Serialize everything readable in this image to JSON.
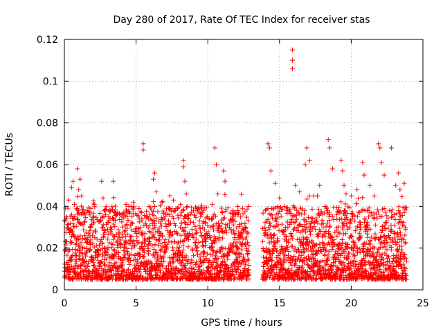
{
  "chart_data": {
    "type": "scatter",
    "title": "Day 280 of 2017, Rate Of TEC Index for receiver stas",
    "xlabel": "GPS time / hours",
    "ylabel": "ROTI / TECUs",
    "xlim": [
      0,
      25
    ],
    "ylim": [
      0,
      0.12
    ],
    "xticks": [
      0,
      5,
      10,
      15,
      20,
      25
    ],
    "xtick_labels": [
      "0",
      "5",
      "10",
      "15",
      "20",
      "25"
    ],
    "yticks": [
      0,
      0.02,
      0.04,
      0.06,
      0.08,
      0.1,
      0.12
    ],
    "ytick_labels": [
      "0",
      "0.02",
      "0.04",
      "0.06",
      "0.08",
      "0.1",
      "0.12"
    ],
    "grid": true,
    "marker": "plus",
    "marker_color": "#ff0000",
    "data_gap_hours": [
      12.9,
      13.8
    ],
    "series": [
      {
        "points": [
          [
            0.3,
            0.043
          ],
          [
            0.4,
            0.035
          ],
          [
            0.5,
            0.049
          ],
          [
            0.6,
            0.052
          ],
          [
            0.7,
            0.041
          ],
          [
            0.9,
            0.058
          ],
          [
            1.0,
            0.048
          ],
          [
            1.1,
            0.053
          ],
          [
            1.2,
            0.045
          ],
          [
            1.6,
            0.038
          ],
          [
            2.0,
            0.032
          ],
          [
            2.6,
            0.052
          ],
          [
            2.7,
            0.044
          ],
          [
            3.2,
            0.038
          ],
          [
            3.4,
            0.052
          ],
          [
            3.9,
            0.036
          ],
          [
            4.3,
            0.041
          ],
          [
            4.8,
            0.042
          ],
          [
            5.2,
            0.039
          ],
          [
            5.5,
            0.07
          ],
          [
            5.5,
            0.067
          ],
          [
            5.9,
            0.04
          ],
          [
            6.2,
            0.053
          ],
          [
            6.3,
            0.056
          ],
          [
            6.4,
            0.047
          ],
          [
            6.8,
            0.042
          ],
          [
            7.3,
            0.036
          ],
          [
            7.6,
            0.043
          ],
          [
            8.1,
            0.041
          ],
          [
            8.3,
            0.062
          ],
          [
            8.3,
            0.059
          ],
          [
            8.4,
            0.052
          ],
          [
            8.5,
            0.046
          ],
          [
            9.0,
            0.038
          ],
          [
            9.5,
            0.035
          ],
          [
            10.3,
            0.041
          ],
          [
            10.5,
            0.068
          ],
          [
            10.6,
            0.06
          ],
          [
            10.7,
            0.046
          ],
          [
            11.1,
            0.057
          ],
          [
            11.2,
            0.052
          ],
          [
            11.5,
            0.032
          ],
          [
            12.1,
            0.037
          ],
          [
            12.6,
            0.03
          ],
          [
            14.2,
            0.07
          ],
          [
            14.3,
            0.068
          ],
          [
            14.4,
            0.057
          ],
          [
            14.7,
            0.051
          ],
          [
            15.0,
            0.044
          ],
          [
            15.5,
            0.038
          ],
          [
            15.9,
            0.115
          ],
          [
            15.9,
            0.11
          ],
          [
            15.9,
            0.106
          ],
          [
            16.1,
            0.05
          ],
          [
            16.4,
            0.047
          ],
          [
            16.8,
            0.06
          ],
          [
            16.9,
            0.068
          ],
          [
            17.1,
            0.062
          ],
          [
            17.4,
            0.045
          ],
          [
            17.8,
            0.05
          ],
          [
            18.4,
            0.072
          ],
          [
            18.5,
            0.068
          ],
          [
            18.7,
            0.058
          ],
          [
            19.3,
            0.062
          ],
          [
            19.4,
            0.057
          ],
          [
            19.5,
            0.05
          ],
          [
            20.0,
            0.045
          ],
          [
            20.4,
            0.048
          ],
          [
            20.8,
            0.061
          ],
          [
            20.9,
            0.055
          ],
          [
            21.3,
            0.05
          ],
          [
            21.6,
            0.045
          ],
          [
            21.9,
            0.07
          ],
          [
            22.0,
            0.068
          ],
          [
            22.1,
            0.061
          ],
          [
            22.3,
            0.055
          ],
          [
            22.8,
            0.068
          ],
          [
            23.1,
            0.05
          ],
          [
            23.3,
            0.056
          ],
          [
            23.4,
            0.048
          ],
          [
            23.7,
            0.051
          ]
        ]
      }
    ]
  }
}
